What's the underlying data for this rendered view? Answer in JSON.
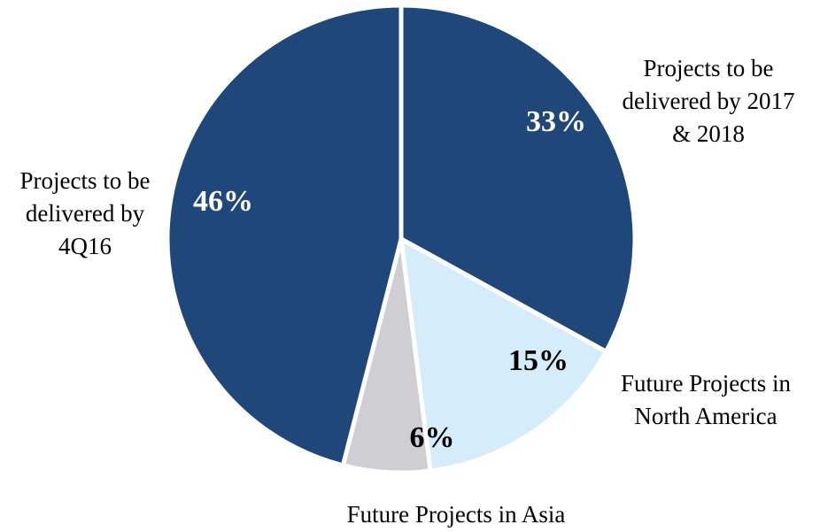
{
  "chart_data": {
    "type": "pie",
    "title": "",
    "start_angle_deg": 0,
    "direction": "clockwise",
    "slices": [
      {
        "label": "Projects to be delivered by 2017 & 2018",
        "label_lines": [
          "Projects to be",
          "delivered by 2017",
          "& 2018"
        ],
        "value": 33,
        "display": "33%",
        "color": "#1f477a",
        "pct_color": "#ffffff"
      },
      {
        "label": "Future Projects in North America",
        "label_lines": [
          "Future Projects in",
          "North America"
        ],
        "value": 15,
        "display": "15%",
        "color": "#d5ecfb",
        "pct_color": "#000000"
      },
      {
        "label": "Future Projects in Asia",
        "label_lines": [
          "Future Projects in Asia"
        ],
        "value": 6,
        "display": "6%",
        "color": "#cfcfd3",
        "pct_color": "#000000"
      },
      {
        "label": "Projects to be delivered by 4Q16",
        "label_lines": [
          "Projects to be",
          "delivered by",
          "4Q16"
        ],
        "value": 46,
        "display": "46%",
        "color": "#1f477a",
        "pct_color": "#ffffff"
      }
    ]
  }
}
